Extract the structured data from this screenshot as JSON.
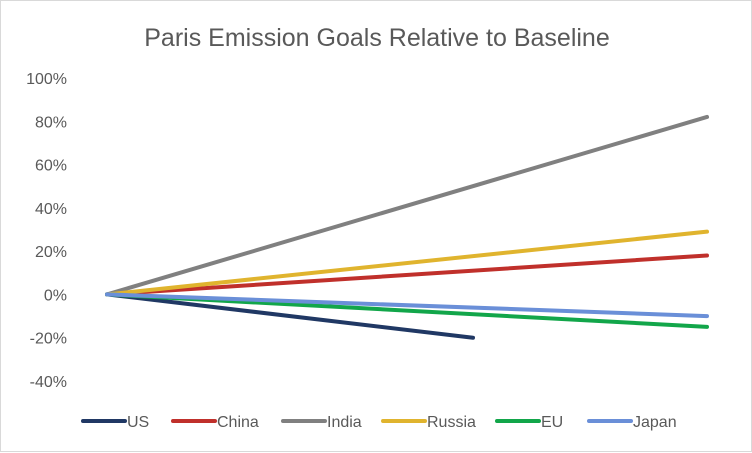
{
  "chart_data": {
    "type": "line",
    "title": "Paris Emission Goals Relative to Baseline",
    "xlabel": "",
    "ylabel": "",
    "ylim": [
      -40,
      100
    ],
    "yticks": [
      100,
      80,
      60,
      40,
      20,
      0,
      -20,
      -40
    ],
    "ytick_labels": [
      "100%",
      "80%",
      "60%",
      "40%",
      "20%",
      "0%",
      "-20%",
      "-40%"
    ],
    "x_points": [
      0,
      1
    ],
    "grid": false,
    "legend_position": "bottom",
    "series": [
      {
        "name": "US",
        "color": "#203864",
        "values": [
          0,
          -20
        ],
        "x_end": 0.61
      },
      {
        "name": "China",
        "color": "#c0302b",
        "values": [
          0,
          18
        ],
        "x_end": 1
      },
      {
        "name": "India",
        "color": "#808080",
        "values": [
          0,
          82
        ],
        "x_end": 1
      },
      {
        "name": "Russia",
        "color": "#e0b42e",
        "values": [
          0,
          29
        ],
        "x_end": 1
      },
      {
        "name": "EU",
        "color": "#12a64a",
        "values": [
          0,
          -15
        ],
        "x_end": 1
      },
      {
        "name": "Japan",
        "color": "#6a8fd8",
        "values": [
          0,
          -10
        ],
        "x_end": 1
      }
    ]
  }
}
